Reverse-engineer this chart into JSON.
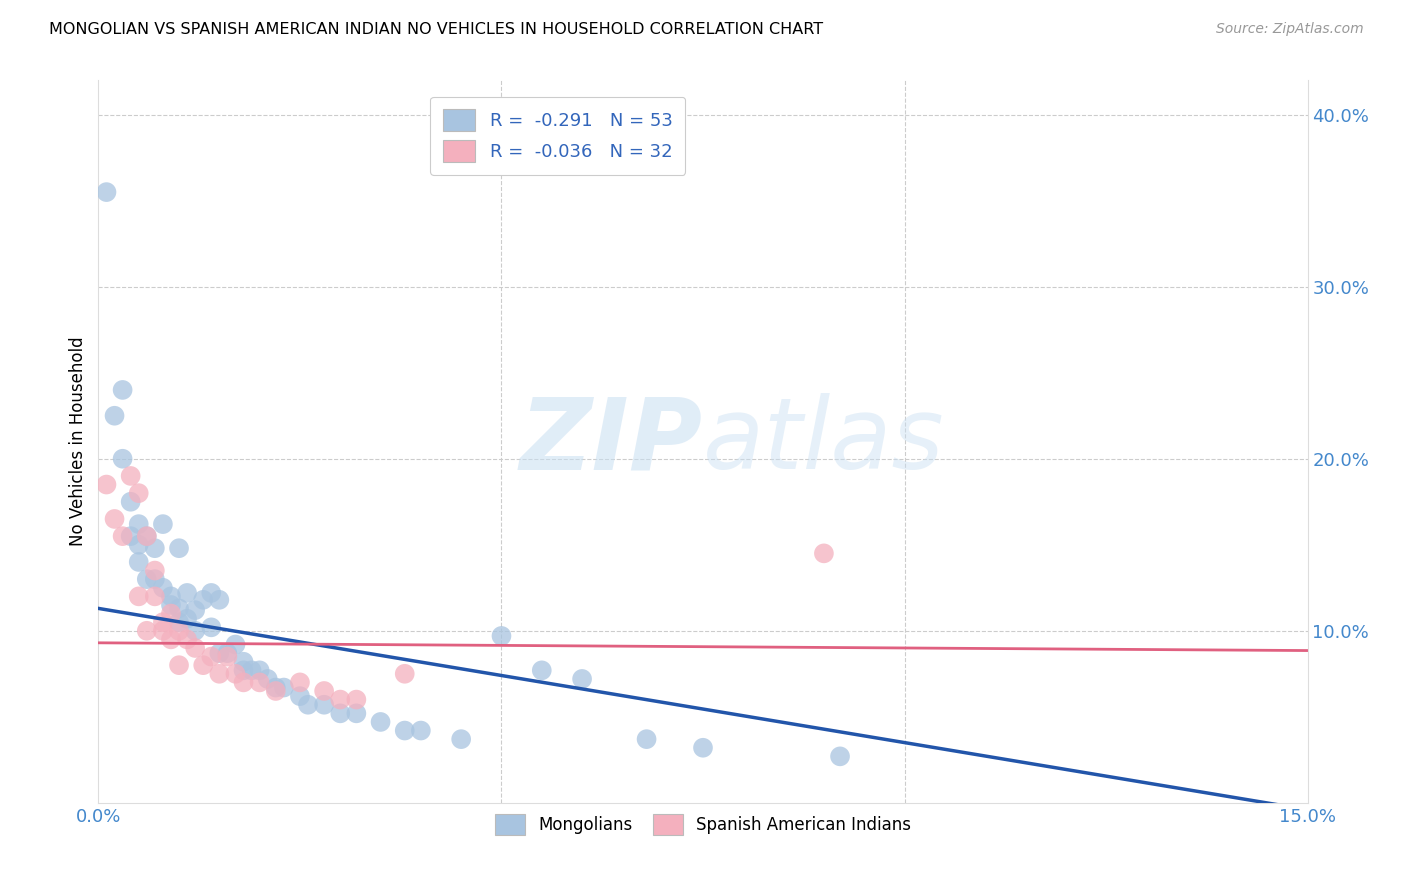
{
  "title": "MONGOLIAN VS SPANISH AMERICAN INDIAN NO VEHICLES IN HOUSEHOLD CORRELATION CHART",
  "source": "Source: ZipAtlas.com",
  "ylabel": "No Vehicles in Household",
  "xlim": [
    0.0,
    0.15
  ],
  "ylim": [
    0.0,
    0.42
  ],
  "xticks": [
    0.0,
    0.05,
    0.1,
    0.15
  ],
  "xticklabels": [
    "0.0%",
    "",
    "",
    "15.0%"
  ],
  "yticks_right": [
    0.1,
    0.2,
    0.3,
    0.4
  ],
  "yticklabels_right": [
    "10.0%",
    "20.0%",
    "30.0%",
    "40.0%"
  ],
  "legend_blue_label": "R =  -0.291   N = 53",
  "legend_pink_label": "R =  -0.036   N = 32",
  "blue_color": "#a8c4e0",
  "pink_color": "#f4b0be",
  "blue_line_color": "#2255aa",
  "pink_line_color": "#e06080",
  "watermark_zip": "ZIP",
  "watermark_atlas": "atlas",
  "legend_label_mongolians": "Mongolians",
  "legend_label_spanish": "Spanish American Indians",
  "blue_regression": [
    0.113,
    -0.78
  ],
  "pink_regression": [
    0.093,
    -0.03
  ],
  "mongolians_x": [
    0.001,
    0.002,
    0.003,
    0.003,
    0.004,
    0.004,
    0.005,
    0.005,
    0.005,
    0.006,
    0.006,
    0.007,
    0.007,
    0.008,
    0.008,
    0.009,
    0.009,
    0.01,
    0.01,
    0.01,
    0.011,
    0.011,
    0.012,
    0.012,
    0.013,
    0.014,
    0.014,
    0.015,
    0.015,
    0.016,
    0.017,
    0.018,
    0.018,
    0.019,
    0.02,
    0.021,
    0.022,
    0.023,
    0.025,
    0.026,
    0.028,
    0.03,
    0.032,
    0.035,
    0.038,
    0.04,
    0.045,
    0.05,
    0.055,
    0.06,
    0.068,
    0.075,
    0.092
  ],
  "mongolians_y": [
    0.355,
    0.225,
    0.24,
    0.2,
    0.175,
    0.155,
    0.162,
    0.15,
    0.14,
    0.155,
    0.13,
    0.148,
    0.13,
    0.162,
    0.125,
    0.12,
    0.115,
    0.148,
    0.113,
    0.105,
    0.122,
    0.107,
    0.112,
    0.1,
    0.118,
    0.122,
    0.102,
    0.118,
    0.087,
    0.087,
    0.092,
    0.082,
    0.077,
    0.077,
    0.077,
    0.072,
    0.067,
    0.067,
    0.062,
    0.057,
    0.057,
    0.052,
    0.052,
    0.047,
    0.042,
    0.042,
    0.037,
    0.097,
    0.077,
    0.072,
    0.037,
    0.032,
    0.027
  ],
  "spanish_x": [
    0.001,
    0.002,
    0.003,
    0.004,
    0.005,
    0.005,
    0.006,
    0.006,
    0.007,
    0.007,
    0.008,
    0.008,
    0.009,
    0.009,
    0.01,
    0.01,
    0.011,
    0.012,
    0.013,
    0.014,
    0.015,
    0.016,
    0.017,
    0.018,
    0.02,
    0.022,
    0.025,
    0.028,
    0.03,
    0.032,
    0.038,
    0.09
  ],
  "spanish_y": [
    0.185,
    0.165,
    0.155,
    0.19,
    0.18,
    0.12,
    0.155,
    0.1,
    0.135,
    0.12,
    0.1,
    0.105,
    0.11,
    0.095,
    0.1,
    0.08,
    0.095,
    0.09,
    0.08,
    0.085,
    0.075,
    0.085,
    0.075,
    0.07,
    0.07,
    0.065,
    0.07,
    0.065,
    0.06,
    0.06,
    0.075,
    0.145
  ]
}
